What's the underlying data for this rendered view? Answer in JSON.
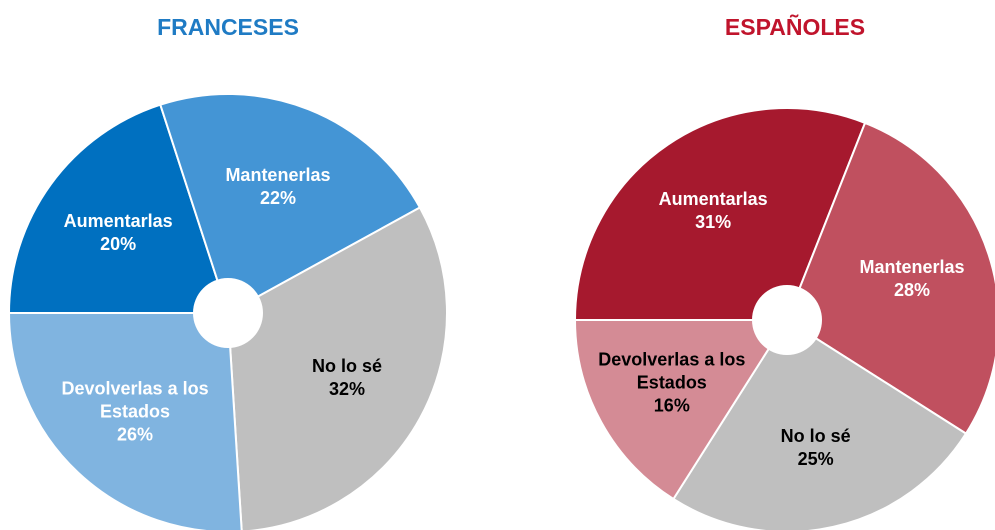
{
  "chart_data": [
    {
      "type": "pie",
      "title": "FRANCESES",
      "title_color": "#1f7bc4",
      "categories": [
        "Aumentarlas",
        "Mantenerlas",
        "No lo sé",
        "Devolverlas a los Estados"
      ],
      "values": [
        20,
        22,
        32,
        26
      ],
      "value_labels": [
        "20%",
        "22%",
        "32%",
        "26%"
      ],
      "colors": [
        "#0070c0",
        "#4495d5",
        "#bfbfbf",
        "#80b4e0"
      ]
    },
    {
      "type": "pie",
      "title": "ESPAÑOLES",
      "title_color": "#c0142c",
      "categories": [
        "Aumentarlas",
        "Mantenerlas",
        "No lo sé",
        "Devolverlas a los Estados"
      ],
      "values": [
        31,
        28,
        25,
        16
      ],
      "value_labels": [
        "31%",
        "28%",
        "25%",
        "16%"
      ],
      "colors": [
        "#a6192e",
        "#c0505f",
        "#bfbfbf",
        "#d48b95"
      ]
    }
  ]
}
